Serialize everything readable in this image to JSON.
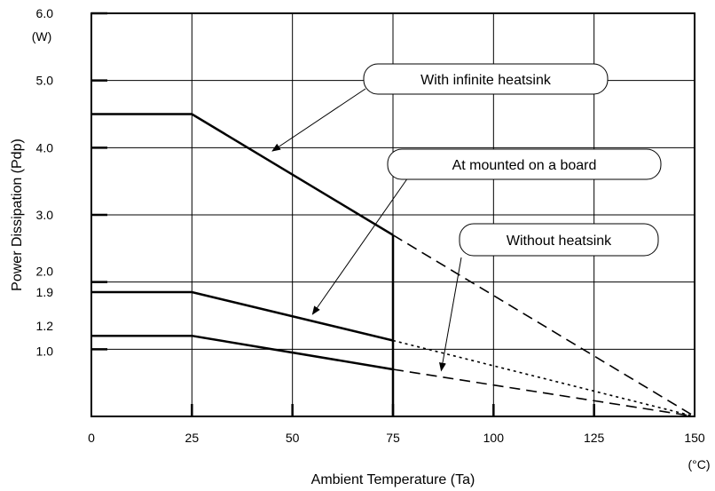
{
  "chart_data": {
    "type": "line",
    "xlabel": "Ambient Temperature (Ta)",
    "ylabel": "Power Dissipation (Pdp)",
    "x_unit": "(°C)",
    "y_unit": "(W)",
    "xlim": [
      0,
      150
    ],
    "ylim": [
      0,
      6.0
    ],
    "x_ticks": [
      0,
      25,
      50,
      75,
      100,
      125,
      150
    ],
    "x_tick_labels": [
      "0",
      "25",
      "50",
      "75",
      "100",
      "125",
      "150"
    ],
    "y_gridlines": [
      1.0,
      2.0,
      3.0,
      4.0,
      5.0,
      6.0
    ],
    "y_ticks": [
      1.0,
      1.2,
      1.9,
      2.0,
      3.0,
      4.0,
      5.0,
      6.0
    ],
    "y_tick_labels": [
      "1.0",
      "1.2",
      "1.9",
      "2.0",
      "3.0",
      "4.0",
      "5.0",
      "6.0"
    ],
    "grid": true,
    "series": [
      {
        "name": "With infinite heatsink",
        "solid": [
          [
            0,
            4.5
          ],
          [
            25,
            4.5
          ],
          [
            75,
            2.7
          ]
        ],
        "dashed": [
          [
            75,
            2.7
          ],
          [
            150,
            0
          ]
        ],
        "dash_style": "dashed"
      },
      {
        "name": "At mounted on a board",
        "solid": [
          [
            0,
            1.85
          ],
          [
            25,
            1.85
          ],
          [
            75,
            1.13
          ]
        ],
        "dashed": [
          [
            75,
            1.13
          ],
          [
            150,
            0
          ]
        ],
        "dash_style": "dotted"
      },
      {
        "name": "Without heatsink",
        "solid": [
          [
            0,
            1.2
          ],
          [
            25,
            1.2
          ],
          [
            75,
            0.7
          ]
        ],
        "dashed": [
          [
            75,
            0.7
          ],
          [
            150,
            0
          ]
        ],
        "dash_style": "dashed"
      }
    ],
    "vertical_marker": {
      "x": 75,
      "y_top": 2.7
    },
    "annotations": [
      {
        "text": "With infinite heatsink",
        "points_to": [
          45,
          3.95
        ]
      },
      {
        "text": "At mounted on a board",
        "points_to": [
          55,
          1.52
        ]
      },
      {
        "text": "Without heatsink",
        "points_to": [
          87,
          0.68
        ]
      }
    ]
  }
}
